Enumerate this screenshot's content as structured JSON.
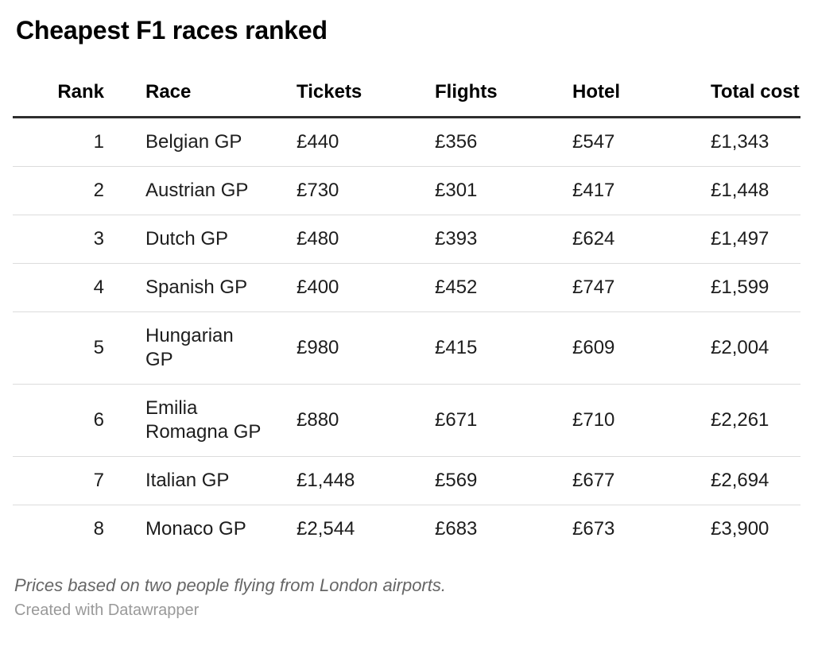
{
  "title": "Cheapest F1 races ranked",
  "chart_data": {
    "type": "table",
    "title": "Cheapest F1 races ranked",
    "currency": "£",
    "columns": [
      "Rank",
      "Race",
      "Tickets",
      "Flights",
      "Hotel",
      "Total cost"
    ],
    "rows": [
      {
        "rank": "1",
        "race": "Belgian GP",
        "tickets": "£440",
        "flights": "£356",
        "hotel": "£547",
        "total": "£1,343"
      },
      {
        "rank": "2",
        "race": "Austrian GP",
        "tickets": "£730",
        "flights": "£301",
        "hotel": "£417",
        "total": "£1,448"
      },
      {
        "rank": "3",
        "race": "Dutch GP",
        "tickets": "£480",
        "flights": "£393",
        "hotel": "£624",
        "total": "£1,497"
      },
      {
        "rank": "4",
        "race": "Spanish GP",
        "tickets": "£400",
        "flights": "£452",
        "hotel": "£747",
        "total": "£1,599"
      },
      {
        "rank": "5",
        "race": "Hungarian\nGP",
        "tickets": "£980",
        "flights": "£415",
        "hotel": "£609",
        "total": "£2,004"
      },
      {
        "rank": "6",
        "race": "Emilia\nRomagna GP",
        "tickets": "£880",
        "flights": "£671",
        "hotel": "£710",
        "total": "£2,261"
      },
      {
        "rank": "7",
        "race": "Italian GP",
        "tickets": "£1,448",
        "flights": "£569",
        "hotel": "£677",
        "total": "£2,694"
      },
      {
        "rank": "8",
        "race": "Monaco GP",
        "tickets": "£2,544",
        "flights": "£683",
        "hotel": "£673",
        "total": "£3,900"
      }
    ],
    "numeric": {
      "races": [
        "Belgian GP",
        "Austrian GP",
        "Dutch GP",
        "Spanish GP",
        "Hungarian GP",
        "Emilia Romagna GP",
        "Italian GP",
        "Monaco GP"
      ],
      "tickets": [
        440,
        730,
        480,
        400,
        980,
        880,
        1448,
        2544
      ],
      "flights": [
        356,
        301,
        393,
        452,
        415,
        671,
        569,
        683
      ],
      "hotel": [
        547,
        417,
        624,
        747,
        609,
        710,
        677,
        673
      ],
      "total_cost": [
        1343,
        1448,
        1497,
        1599,
        2004,
        2261,
        2694,
        3900
      ]
    },
    "footnote": "Prices based on two people flying from London airports."
  },
  "footer": {
    "footnote": "Prices based on two people flying from London airports.",
    "attribution": "Created with Datawrapper"
  },
  "colors": {
    "background": "#ffffff",
    "title_text": "#000000",
    "header_text": "#000000",
    "body_text": "#1d1d1d",
    "header_rule": "#2e2e2e",
    "row_rule": "#dcdcdc",
    "footnote_text": "#666666",
    "attribution_text": "#999999"
  }
}
